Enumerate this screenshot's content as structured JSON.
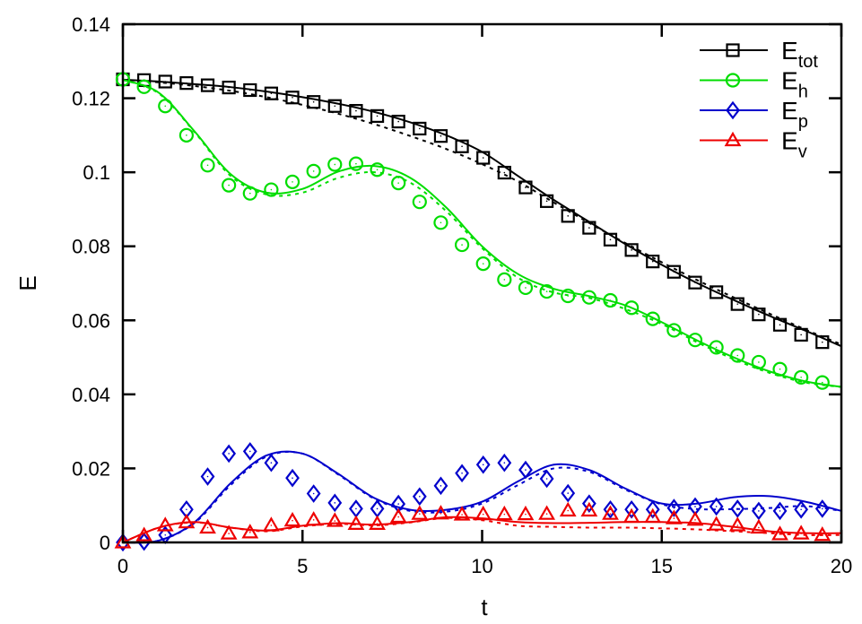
{
  "chart_data": {
    "type": "line",
    "title": "",
    "xlabel": "t",
    "ylabel": "E",
    "xlim": [
      0,
      20
    ],
    "ylim": [
      0,
      0.14
    ],
    "xticks": [
      "0",
      "5",
      "10",
      "15",
      "20"
    ],
    "xtick_values": [
      0,
      5,
      10,
      15,
      20
    ],
    "yticks": [
      "0",
      "0.02",
      "0.04",
      "0.06",
      "0.08",
      "0.1",
      "0.12",
      "0.14"
    ],
    "ytick_values": [
      0,
      0.02,
      0.04,
      0.06,
      0.08,
      0.1,
      0.12,
      0.14
    ],
    "grid": false,
    "legend_position": "top-right",
    "curve_t": [
      0,
      1,
      2,
      3,
      4,
      5,
      6,
      7,
      8,
      9,
      10,
      11,
      12,
      13,
      14,
      15,
      16,
      17,
      18,
      19,
      20
    ],
    "marker_t_step": 0.59,
    "series": [
      {
        "name": "E",
        "sub": "tot",
        "color": "#000000",
        "marker": "square",
        "solid": [
          0.125,
          0.1245,
          0.1238,
          0.123,
          0.1218,
          0.1203,
          0.1185,
          0.1163,
          0.1135,
          0.11,
          0.1055,
          0.099,
          0.0925,
          0.0865,
          0.0805,
          0.075,
          0.07,
          0.0655,
          0.0612,
          0.0572,
          0.053
        ],
        "dashed": [
          0.125,
          0.1243,
          0.1233,
          0.122,
          0.1203,
          0.1182,
          0.1158,
          0.113,
          0.1098,
          0.1063,
          0.1022,
          0.0975,
          0.0918,
          0.0862,
          0.0808,
          0.0757,
          0.0708,
          0.0662,
          0.0618,
          0.0575,
          0.0535
        ],
        "markers": [
          0.1251,
          0.1249,
          0.1245,
          0.1241,
          0.1235,
          0.1229,
          0.1222,
          0.1213,
          0.1202,
          0.119,
          0.1179,
          0.1166,
          0.1152,
          0.1137,
          0.1118,
          0.1098,
          0.107,
          0.1039,
          0.0999,
          0.0959,
          0.0922,
          0.0882,
          0.085,
          0.0818,
          0.079,
          0.0759,
          0.0731,
          0.0702,
          0.0676,
          0.0644,
          0.0616,
          0.0588,
          0.0561,
          0.0541
        ]
      },
      {
        "name": "E",
        "sub": "h",
        "color": "#00dd00",
        "marker": "circle",
        "solid": [
          0.125,
          0.1215,
          0.111,
          0.0995,
          0.0945,
          0.0955,
          0.1002,
          0.1017,
          0.0985,
          0.0905,
          0.08,
          0.0725,
          0.0685,
          0.0665,
          0.064,
          0.0595,
          0.0545,
          0.05,
          0.0462,
          0.0435,
          0.042
        ],
        "dashed": [
          0.125,
          0.1213,
          0.1108,
          0.099,
          0.094,
          0.0945,
          0.0985,
          0.1,
          0.0972,
          0.0895,
          0.0795,
          0.0715,
          0.0675,
          0.066,
          0.063,
          0.059,
          0.054,
          0.0495,
          0.0458,
          0.0432,
          0.042
        ],
        "markers": [
          0.1251,
          0.1231,
          0.1179,
          0.11,
          0.1019,
          0.0965,
          0.0943,
          0.0953,
          0.0974,
          0.1003,
          0.1021,
          0.1023,
          0.1007,
          0.0971,
          0.092,
          0.0864,
          0.0804,
          0.0753,
          0.071,
          0.0688,
          0.0678,
          0.0666,
          0.0662,
          0.0654,
          0.0634,
          0.0604,
          0.0573,
          0.0547,
          0.0527,
          0.0505,
          0.0487,
          0.0468,
          0.0446,
          0.0432
        ]
      },
      {
        "name": "E",
        "sub": "p",
        "color": "#0000cc",
        "marker": "diamond",
        "solid": [
          0,
          0.0005,
          0.0055,
          0.016,
          0.0235,
          0.024,
          0.0185,
          0.012,
          0.0088,
          0.0088,
          0.011,
          0.0165,
          0.021,
          0.0195,
          0.0145,
          0.0105,
          0.0105,
          0.0122,
          0.0125,
          0.011,
          0.0085
        ],
        "dashed": [
          0,
          0.0005,
          0.0053,
          0.0155,
          0.0232,
          0.024,
          0.0183,
          0.0118,
          0.0085,
          0.0083,
          0.0105,
          0.0155,
          0.02,
          0.019,
          0.0142,
          0.0103,
          0.009,
          0.009,
          0.0093,
          0.0098,
          0.0085
        ],
        "markers": [
          0,
          0.0002,
          0.002,
          0.0089,
          0.0178,
          0.024,
          0.0246,
          0.0215,
          0.0174,
          0.0132,
          0.0107,
          0.0091,
          0.0091,
          0.0104,
          0.0124,
          0.0153,
          0.0187,
          0.021,
          0.0215,
          0.0196,
          0.0172,
          0.0133,
          0.0105,
          0.0089,
          0.0089,
          0.0089,
          0.0093,
          0.0097,
          0.0097,
          0.0091,
          0.0085,
          0.0085,
          0.0089,
          0.0091
        ]
      },
      {
        "name": "E",
        "sub": "v",
        "color": "#ee0000",
        "marker": "triangle",
        "solid": [
          0,
          0.004,
          0.0055,
          0.004,
          0.0032,
          0.0045,
          0.0052,
          0.0048,
          0.0055,
          0.0068,
          0.0065,
          0.0055,
          0.0052,
          0.0053,
          0.0055,
          0.0055,
          0.0052,
          0.0042,
          0.003,
          0.0025,
          0.0025
        ],
        "dashed": [
          0,
          0.004,
          0.0054,
          0.004,
          0.003,
          0.0043,
          0.005,
          0.0046,
          0.0054,
          0.0066,
          0.006,
          0.0045,
          0.0042,
          0.004,
          0.004,
          0.0038,
          0.0035,
          0.003,
          0.0025,
          0.002,
          0.002
        ],
        "markers": [
          0,
          0.0019,
          0.0046,
          0.0054,
          0.004,
          0.0024,
          0.0027,
          0.0046,
          0.0059,
          0.0061,
          0.0058,
          0.005,
          0.005,
          0.0069,
          0.0077,
          0.0078,
          0.0075,
          0.0076,
          0.0076,
          0.0076,
          0.0077,
          0.0086,
          0.0086,
          0.0077,
          0.0069,
          0.0069,
          0.0065,
          0.0061,
          0.0048,
          0.0046,
          0.004,
          0.0022,
          0.0024,
          0.002
        ]
      }
    ]
  }
}
